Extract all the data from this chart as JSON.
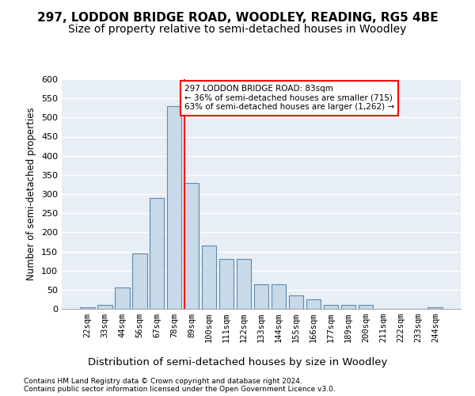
{
  "title1": "297, LODDON BRIDGE ROAD, WOODLEY, READING, RG5 4BE",
  "title2": "Size of property relative to semi-detached houses in Woodley",
  "xlabel": "Distribution of semi-detached houses by size in Woodley",
  "ylabel": "Number of semi-detached properties",
  "footnote1": "Contains HM Land Registry data © Crown copyright and database right 2024.",
  "footnote2": "Contains public sector information licensed under the Open Government Licence v3.0.",
  "bar_labels": [
    "22sqm",
    "33sqm",
    "44sqm",
    "56sqm",
    "67sqm",
    "78sqm",
    "89sqm",
    "100sqm",
    "111sqm",
    "122sqm",
    "133sqm",
    "144sqm",
    "155sqm",
    "166sqm",
    "177sqm",
    "189sqm",
    "200sqm",
    "211sqm",
    "222sqm",
    "233sqm",
    "244sqm"
  ],
  "bar_values": [
    5,
    10,
    55,
    145,
    290,
    530,
    330,
    165,
    130,
    130,
    65,
    65,
    35,
    25,
    10,
    10,
    10,
    0,
    0,
    0,
    5
  ],
  "bar_color": "#c8d9e8",
  "bar_edge_color": "#5a8ab0",
  "vline_bar_index": 6,
  "vline_color": "red",
  "annotation_text": "297 LODDON BRIDGE ROAD: 83sqm\n← 36% of semi-detached houses are smaller (715)\n63% of semi-detached houses are larger (1,262) →",
  "annotation_box_color": "white",
  "annotation_box_edge_color": "red",
  "ylim": [
    0,
    600
  ],
  "yticks": [
    0,
    50,
    100,
    150,
    200,
    250,
    300,
    350,
    400,
    450,
    500,
    550,
    600
  ],
  "background_color": "#e8eef5",
  "grid_color": "white",
  "title1_fontsize": 11,
  "title2_fontsize": 10,
  "xlabel_fontsize": 9.5,
  "ylabel_fontsize": 8.5
}
